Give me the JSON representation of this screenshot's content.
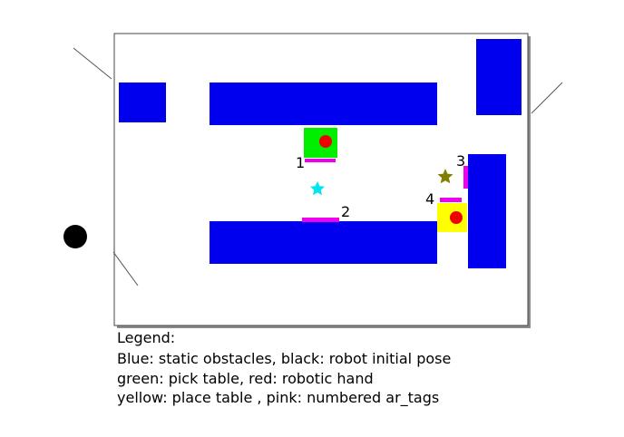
{
  "legend": {
    "title": "Legend:",
    "lines": [
      "Blue: static obstacles, black: robot initial pose",
      "green: pick table, red: robotic hand",
      "yellow: place table , pink: numbered ar_tags"
    ]
  },
  "ar_tags": [
    {
      "number": "1"
    },
    {
      "number": "2"
    },
    {
      "number": "3"
    },
    {
      "number": "4"
    }
  ],
  "colors": {
    "static_obstacle": "#0000ee",
    "robot": "#000000",
    "pick_table": "#00ee00",
    "robotic_hand": "#ee0000",
    "place_table": "#ffff00",
    "ar_tag": "#ee00ee",
    "cyan_star": "#00e5ee",
    "olive_star": "#808000"
  },
  "icons": [
    "cyan-star-icon",
    "olive-star-icon",
    "robot-initial-pose-icon"
  ]
}
